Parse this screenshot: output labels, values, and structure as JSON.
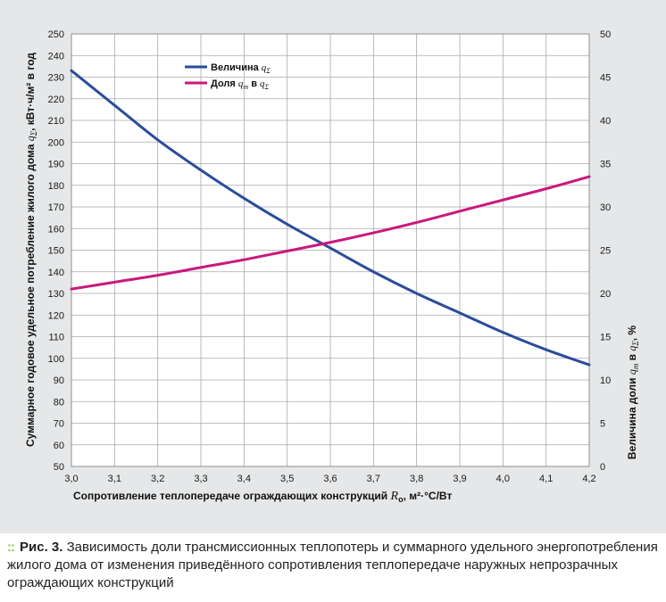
{
  "chart_data": {
    "type": "line",
    "x_axis": {
      "label_prefix": "Сопротивление теплопередаче ограждающих конструкций ",
      "label_var": "R",
      "label_sub": "о",
      "label_suffix": ", м²·°С/Вт",
      "ticks": [
        "3,0",
        "3,1",
        "3,2",
        "3,3",
        "3,4",
        "3,5",
        "3,6",
        "3,7",
        "3,8",
        "3,9",
        "4,0",
        "4,1",
        "4,2"
      ],
      "range": [
        3.0,
        4.2
      ]
    },
    "y_left": {
      "label_prefix": "Суммарное годовое удельное потребление жилого дома ",
      "label_var": "q",
      "label_sub": "Σ",
      "label_suffix": ", кВт·ч/м² в год",
      "ticks": [
        "50",
        "60",
        "70",
        "80",
        "90",
        "100",
        "110",
        "120",
        "130",
        "140",
        "150",
        "160",
        "170",
        "180",
        "190",
        "200",
        "210",
        "220",
        "230",
        "240",
        "250"
      ],
      "range": [
        50,
        250
      ]
    },
    "y_right": {
      "label_prefix": "Величина доли ",
      "label_var1": "q",
      "label_sub1": "т",
      "label_mid": " в ",
      "label_var2": "q",
      "label_sub2": "Σ",
      "label_suffix": ", %",
      "ticks": [
        "0",
        "5",
        "10",
        "15",
        "20",
        "25",
        "30",
        "35",
        "40",
        "45",
        "50"
      ],
      "range": [
        0,
        50
      ]
    },
    "grid": true,
    "legend_position": "top-left",
    "series": [
      {
        "name_prefix": "Величина ",
        "name_var": "q",
        "name_sub": "Σ",
        "axis": "left",
        "color": "#2b4c9b",
        "x": [
          3.0,
          3.1,
          3.2,
          3.3,
          3.4,
          3.5,
          3.6,
          3.7,
          3.8,
          3.9,
          4.0,
          4.1,
          4.2
        ],
        "y": [
          233,
          217,
          201,
          187,
          174,
          162,
          151,
          140,
          130,
          121,
          112,
          104,
          97
        ]
      },
      {
        "name_prefix": "Доля ",
        "name_var1": "q",
        "name_sub1": "т",
        "name_mid": " в ",
        "name_var2": "q",
        "name_sub2": "Σ",
        "axis": "right",
        "color": "#c8197d",
        "x": [
          3.0,
          3.1,
          3.2,
          3.3,
          3.4,
          3.5,
          3.6,
          3.7,
          3.8,
          3.9,
          4.0,
          4.1,
          4.2
        ],
        "y": [
          20.5,
          21.3,
          22.1,
          23.0,
          23.9,
          24.9,
          25.9,
          27.0,
          28.2,
          29.5,
          30.8,
          32.1,
          33.5
        ]
      }
    ]
  },
  "caption": {
    "bullet": "::",
    "lead": "Рис. 3.",
    "text": " Зависимость доли трансмиссионных теплопотерь и суммарного удельного энергопотребления жилого дома от изменения приведённого сопротивления теплопередаче наружных непрозрачных ограждающих конструкций"
  }
}
